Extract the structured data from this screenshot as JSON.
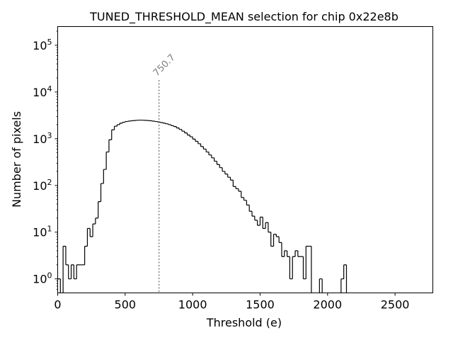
{
  "chart_data": {
    "type": "histogram",
    "title": "TUNED_THRESHOLD_MEAN selection for chip 0x22e8b",
    "xlabel": "Threshold (e)",
    "ylabel": "Number of pixels",
    "xlim": [
      0,
      2780
    ],
    "ylim_log10": [
      -0.3,
      5.4
    ],
    "yscale": "log",
    "x_ticks": [
      0,
      500,
      1000,
      1500,
      2000,
      2500
    ],
    "x_tick_labels": [
      "0",
      "500",
      "1000",
      "1500",
      "2000",
      "2500"
    ],
    "y_ticks_log10": [
      0,
      1,
      2,
      3,
      4,
      5
    ],
    "y_tick_labels": [
      {
        "base": "10",
        "exp": "0"
      },
      {
        "base": "10",
        "exp": "1"
      },
      {
        "base": "10",
        "exp": "2"
      },
      {
        "base": "10",
        "exp": "3"
      },
      {
        "base": "10",
        "exp": "4"
      },
      {
        "base": "10",
        "exp": "5"
      }
    ],
    "bin_width": 20,
    "bins": [
      [
        0,
        1
      ],
      [
        20,
        0
      ],
      [
        40,
        5
      ],
      [
        60,
        2
      ],
      [
        80,
        1
      ],
      [
        100,
        2
      ],
      [
        120,
        1
      ],
      [
        140,
        2
      ],
      [
        160,
        2
      ],
      [
        180,
        2
      ],
      [
        200,
        5
      ],
      [
        220,
        12
      ],
      [
        240,
        8
      ],
      [
        260,
        15
      ],
      [
        280,
        20
      ],
      [
        300,
        45
      ],
      [
        320,
        110
      ],
      [
        340,
        220
      ],
      [
        360,
        520
      ],
      [
        380,
        950
      ],
      [
        400,
        1550
      ],
      [
        420,
        1850
      ],
      [
        440,
        2000
      ],
      [
        460,
        2150
      ],
      [
        480,
        2250
      ],
      [
        500,
        2330
      ],
      [
        520,
        2380
      ],
      [
        540,
        2420
      ],
      [
        560,
        2450
      ],
      [
        580,
        2480
      ],
      [
        600,
        2500
      ],
      [
        620,
        2490
      ],
      [
        640,
        2470
      ],
      [
        660,
        2450
      ],
      [
        680,
        2420
      ],
      [
        700,
        2380
      ],
      [
        720,
        2330
      ],
      [
        740,
        2280
      ],
      [
        760,
        2220
      ],
      [
        780,
        2150
      ],
      [
        800,
        2080
      ],
      [
        820,
        2000
      ],
      [
        840,
        1900
      ],
      [
        860,
        1820
      ],
      [
        880,
        1700
      ],
      [
        900,
        1580
      ],
      [
        920,
        1450
      ],
      [
        940,
        1330
      ],
      [
        960,
        1200
      ],
      [
        980,
        1100
      ],
      [
        1000,
        980
      ],
      [
        1020,
        880
      ],
      [
        1040,
        780
      ],
      [
        1060,
        680
      ],
      [
        1080,
        600
      ],
      [
        1100,
        520
      ],
      [
        1120,
        450
      ],
      [
        1140,
        390
      ],
      [
        1160,
        330
      ],
      [
        1180,
        280
      ],
      [
        1200,
        240
      ],
      [
        1220,
        200
      ],
      [
        1240,
        175
      ],
      [
        1260,
        150
      ],
      [
        1280,
        130
      ],
      [
        1300,
        95
      ],
      [
        1320,
        85
      ],
      [
        1340,
        75
      ],
      [
        1360,
        55
      ],
      [
        1380,
        48
      ],
      [
        1400,
        38
      ],
      [
        1420,
        28
      ],
      [
        1440,
        22
      ],
      [
        1460,
        18
      ],
      [
        1480,
        14
      ],
      [
        1500,
        21
      ],
      [
        1520,
        12
      ],
      [
        1540,
        16
      ],
      [
        1560,
        10
      ],
      [
        1580,
        5
      ],
      [
        1600,
        9
      ],
      [
        1620,
        8
      ],
      [
        1640,
        6
      ],
      [
        1660,
        3
      ],
      [
        1680,
        4
      ],
      [
        1700,
        3
      ],
      [
        1720,
        1
      ],
      [
        1740,
        3
      ],
      [
        1760,
        4
      ],
      [
        1780,
        3
      ],
      [
        1800,
        3
      ],
      [
        1820,
        1
      ],
      [
        1840,
        5
      ],
      [
        1860,
        5
      ],
      [
        1880,
        0
      ],
      [
        1900,
        0
      ],
      [
        1920,
        0
      ],
      [
        1940,
        1
      ],
      [
        1960,
        0
      ],
      [
        1980,
        0
      ],
      [
        2000,
        0
      ],
      [
        2020,
        0
      ],
      [
        2040,
        0
      ],
      [
        2060,
        0
      ],
      [
        2080,
        0
      ],
      [
        2100,
        1
      ],
      [
        2120,
        2
      ],
      [
        2140,
        0
      ]
    ],
    "vline": {
      "x": 750.7,
      "label": "750.7",
      "style": "dotted",
      "color": "#808080"
    }
  }
}
